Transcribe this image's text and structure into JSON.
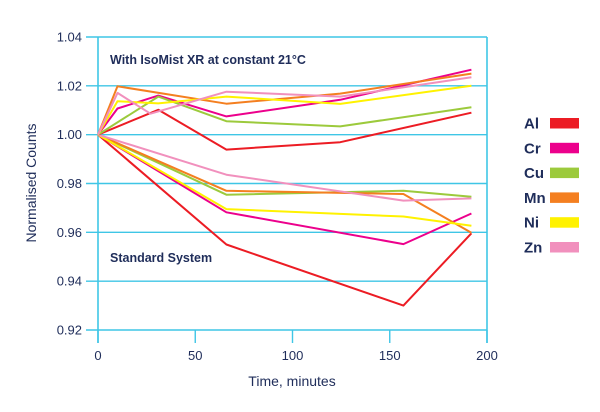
{
  "chart_data": {
    "type": "line",
    "xlabel": "Time, minutes",
    "ylabel": "Normalised Counts",
    "xlim": [
      0,
      200
    ],
    "ylim": [
      0.92,
      1.04
    ],
    "xticks": [
      "0",
      "50",
      "100",
      "150",
      "200"
    ],
    "yticks": [
      "0.92",
      "0.94",
      "0.96",
      "0.98",
      "1.00",
      "1.02",
      "1.04"
    ],
    "grid": "horizontal",
    "legend_position": "right",
    "annotations": {
      "isomist": "With IsoMist XR at constant 21°C",
      "standard": "Standard System"
    },
    "colors": {
      "axis": "#3fc6e6",
      "text": "#1f2d5a"
    },
    "series": [
      {
        "name": "Al",
        "color": "#ec1c24",
        "isomist": [
          [
            0,
            1.0
          ],
          [
            31,
            1.0102
          ],
          [
            66,
            0.9939
          ],
          [
            124.5,
            0.9969
          ],
          [
            192,
            1.009
          ]
        ],
        "standard": [
          [
            0,
            1.0
          ],
          [
            66,
            0.955
          ],
          [
            157,
            0.93
          ],
          [
            192,
            0.9596
          ]
        ]
      },
      {
        "name": "Cr",
        "color": "#ec008c",
        "isomist": [
          [
            0,
            1.0
          ],
          [
            10,
            1.0107
          ],
          [
            31,
            1.016
          ],
          [
            66,
            1.0075
          ],
          [
            124.5,
            1.0143
          ],
          [
            192,
            1.0266
          ]
        ],
        "standard": [
          [
            0,
            1.0
          ],
          [
            66,
            0.9682
          ],
          [
            157,
            0.9552
          ],
          [
            192,
            0.9677
          ]
        ]
      },
      {
        "name": "Cu",
        "color": "#9cca3c",
        "isomist": [
          [
            0,
            1.0
          ],
          [
            31,
            1.0156
          ],
          [
            66,
            1.0055
          ],
          [
            124.5,
            1.0034
          ],
          [
            192,
            1.0112
          ]
        ],
        "standard": [
          [
            0,
            1.0
          ],
          [
            66,
            0.9754
          ],
          [
            157,
            0.977
          ],
          [
            192,
            0.9746
          ]
        ]
      },
      {
        "name": "Mn",
        "color": "#f47f20",
        "isomist": [
          [
            0,
            1.0
          ],
          [
            10,
            1.0198
          ],
          [
            66,
            1.0127
          ],
          [
            124.5,
            1.0168
          ],
          [
            192,
            1.025
          ]
        ],
        "standard": [
          [
            0,
            1.0
          ],
          [
            66,
            0.977
          ],
          [
            157,
            0.9757
          ],
          [
            192,
            0.9598
          ]
        ]
      },
      {
        "name": "Ni",
        "color": "#fff200",
        "isomist": [
          [
            0,
            1.0
          ],
          [
            10,
            1.0137
          ],
          [
            31,
            1.0128
          ],
          [
            66,
            1.0156
          ],
          [
            124.5,
            1.0126
          ],
          [
            192,
            1.02
          ]
        ],
        "standard": [
          [
            0,
            1.0
          ],
          [
            66,
            0.9695
          ],
          [
            157,
            0.9665
          ],
          [
            192,
            0.9627
          ]
        ]
      },
      {
        "name": "Zn",
        "color": "#f190bd",
        "isomist": [
          [
            0,
            1.0
          ],
          [
            10,
            1.0171
          ],
          [
            27,
            1.0086
          ],
          [
            66,
            1.0176
          ],
          [
            124.5,
            1.0156
          ],
          [
            192,
            1.0235
          ]
        ],
        "standard": [
          [
            0,
            1.0
          ],
          [
            66,
            0.9836
          ],
          [
            157,
            0.973
          ],
          [
            192,
            0.9739
          ]
        ]
      }
    ]
  }
}
